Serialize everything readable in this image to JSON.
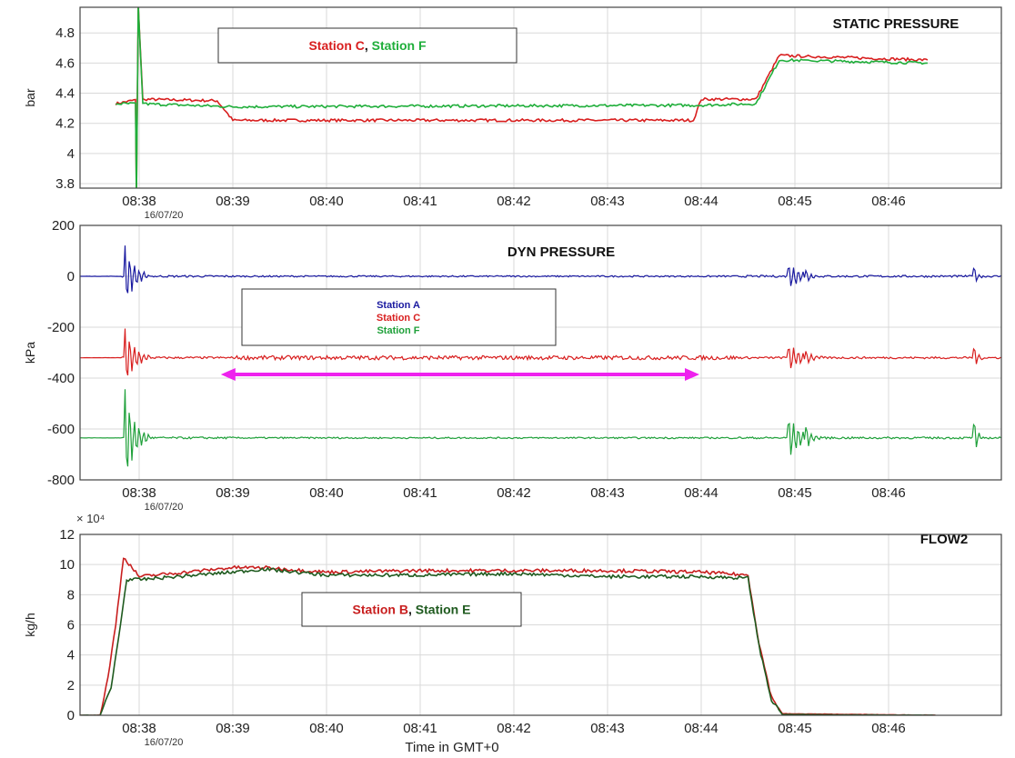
{
  "chart_data": [
    {
      "type": "line",
      "title": "STATIC PRESSURE",
      "ylabel": "bar",
      "xlabel": "",
      "ylim": [
        3.77,
        4.97
      ],
      "yticks": [
        "3.8",
        "4",
        "4.2",
        "4.4",
        "4.6",
        "4.8"
      ],
      "xticks": [
        "08:38",
        "08:39",
        "08:40",
        "08:41",
        "08:42",
        "08:43",
        "08:44",
        "08:45",
        "08:46"
      ],
      "date_label": "16/07/20",
      "legend_text": {
        "a": "Station C",
        "sep": ",",
        "b": "Station F"
      },
      "series": [
        {
          "name": "Station C",
          "color": "#d81e1e",
          "points": [
            [
              "08:37:45",
              4.33
            ],
            [
              "08:38:00",
              4.36
            ],
            [
              "08:38:50",
              4.35
            ],
            [
              "08:39:00",
              4.22
            ],
            [
              "08:43:55",
              4.22
            ],
            [
              "08:44:00",
              4.36
            ],
            [
              "08:44:35",
              4.36
            ],
            [
              "08:44:50",
              4.65
            ],
            [
              "08:46:25",
              4.62
            ]
          ]
        },
        {
          "name": "Station F",
          "color": "#1fae3a",
          "points": [
            [
              "08:37:45",
              4.33
            ],
            [
              "08:38:00",
              4.33
            ],
            [
              "08:39:00",
              4.31
            ],
            [
              "08:44:00",
              4.32
            ],
            [
              "08:44:35",
              4.33
            ],
            [
              "08:44:50",
              4.62
            ],
            [
              "08:46:25",
              4.6
            ]
          ]
        }
      ]
    },
    {
      "type": "line",
      "title": "DYN PRESSURE",
      "ylabel": "kPa",
      "xlabel": "",
      "ylim": [
        -800,
        200
      ],
      "yticks": [
        "200",
        "0",
        "-200",
        "-400",
        "-600",
        "-800"
      ],
      "xticks": [
        "08:38",
        "08:39",
        "08:40",
        "08:41",
        "08:42",
        "08:43",
        "08:44",
        "08:45",
        "08:46"
      ],
      "date_label": "16/07/20",
      "legend": [
        "Station A",
        "Station C",
        "Station F"
      ],
      "series": [
        {
          "name": "Station A",
          "color": "#1a1aa0",
          "baseline": 0
        },
        {
          "name": "Station C",
          "color": "#d81e1e",
          "baseline": -320
        },
        {
          "name": "Station F",
          "color": "#1fa03a",
          "baseline": -635
        }
      ],
      "annotation": {
        "type": "double-arrow",
        "color": "#ee22ee",
        "from": "08:38:50",
        "to": "08:44:00",
        "y": -400
      }
    },
    {
      "type": "line",
      "title": "FLOW2",
      "ylabel": "kg/h",
      "xlabel": "Time in GMT+0",
      "exponent_label": "× 10⁴",
      "ylim": [
        0,
        12
      ],
      "yticks": [
        "0",
        "2",
        "4",
        "6",
        "8",
        "10",
        "12"
      ],
      "xticks": [
        "08:38",
        "08:39",
        "08:40",
        "08:41",
        "08:42",
        "08:43",
        "08:44",
        "08:45",
        "08:46"
      ],
      "date_label": "16/07/20",
      "legend_text": {
        "a": "Station B",
        "sep": ",",
        "b": "Station E"
      },
      "series": [
        {
          "name": "Station B",
          "color": "#c81e1e",
          "points": [
            [
              "08:37:00",
              0
            ],
            [
              "08:37:35",
              0
            ],
            [
              "08:37:40",
              2.5
            ],
            [
              "08:37:45",
              6
            ],
            [
              "08:37:50",
              10.5
            ],
            [
              "08:38:00",
              9.2
            ],
            [
              "08:39:00",
              9.8
            ],
            [
              "08:39:20",
              9.8
            ],
            [
              "08:40:00",
              9.5
            ],
            [
              "08:41:00",
              9.6
            ],
            [
              "08:42:00",
              9.6
            ],
            [
              "08:43:00",
              9.6
            ],
            [
              "08:44:00",
              9.5
            ],
            [
              "08:44:30",
              9.3
            ],
            [
              "08:44:37",
              4.8
            ],
            [
              "08:44:45",
              1.2
            ],
            [
              "08:44:52",
              0.1
            ],
            [
              "08:46:30",
              0
            ]
          ]
        },
        {
          "name": "Station E",
          "color": "#1e5a1e",
          "points": [
            [
              "08:37:00",
              0
            ],
            [
              "08:37:35",
              0
            ],
            [
              "08:37:42",
              1.8
            ],
            [
              "08:37:48",
              6
            ],
            [
              "08:37:52",
              9.0
            ],
            [
              "08:38:00",
              9.0
            ],
            [
              "08:39:00",
              9.5
            ],
            [
              "08:39:20",
              9.7
            ],
            [
              "08:40:00",
              9.3
            ],
            [
              "08:41:00",
              9.3
            ],
            [
              "08:42:00",
              9.4
            ],
            [
              "08:43:00",
              9.2
            ],
            [
              "08:44:00",
              9.2
            ],
            [
              "08:44:30",
              9.1
            ],
            [
              "08:44:37",
              4.6
            ],
            [
              "08:44:45",
              1.0
            ],
            [
              "08:44:52",
              0.05
            ],
            [
              "08:46:30",
              0
            ]
          ]
        }
      ]
    }
  ]
}
